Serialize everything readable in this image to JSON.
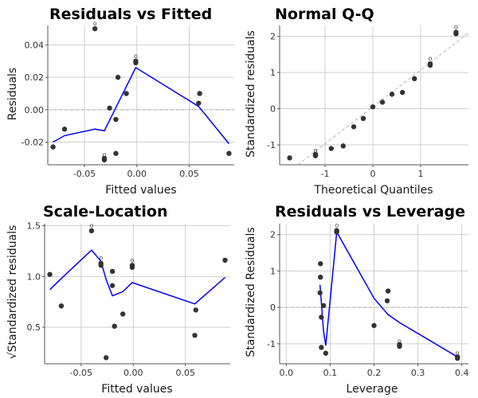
{
  "chart_data": [
    {
      "type": "scatter",
      "title": "Residuals vs Fitted",
      "xlabel": "Fitted values",
      "ylabel": "Residuals",
      "xlim": [
        -0.085,
        0.093
      ],
      "ylim": [
        -0.034,
        0.052
      ],
      "xticks": [
        -0.05,
        0.0,
        0.05
      ],
      "xtick_labels": [
        "-0.05",
        "0.00",
        "0.05"
      ],
      "yticks": [
        -0.02,
        0.0,
        0.02,
        0.04
      ],
      "ytick_labels": [
        "-0.02",
        "0.00",
        "0.02",
        "0.04"
      ],
      "grid": true,
      "ref_line": {
        "y": 0
      },
      "points": [
        {
          "x": -0.08,
          "y": -0.023
        },
        {
          "x": -0.069,
          "y": -0.012
        },
        {
          "x": -0.04,
          "y": 0.05,
          "label": "o"
        },
        {
          "x": -0.031,
          "y": -0.031,
          "label": "o"
        },
        {
          "x": -0.031,
          "y": -0.03
        },
        {
          "x": -0.026,
          "y": 0.001
        },
        {
          "x": -0.02,
          "y": -0.006
        },
        {
          "x": -0.02,
          "y": -0.027
        },
        {
          "x": -0.018,
          "y": 0.02
        },
        {
          "x": -0.01,
          "y": 0.01
        },
        {
          "x": -0.001,
          "y": 0.029
        },
        {
          "x": -0.001,
          "y": 0.03,
          "label": "o"
        },
        {
          "x": 0.059,
          "y": 0.004
        },
        {
          "x": 0.06,
          "y": 0.01
        },
        {
          "x": 0.088,
          "y": -0.027
        }
      ],
      "smoother": [
        [
          -0.08,
          -0.02
        ],
        [
          -0.069,
          -0.016
        ],
        [
          -0.04,
          -0.012
        ],
        [
          -0.031,
          -0.013
        ],
        [
          -0.001,
          0.026
        ],
        [
          0.059,
          0.002
        ],
        [
          0.088,
          -0.021
        ]
      ]
    },
    {
      "type": "scatter",
      "title": "Normal Q-Q",
      "xlabel": "Theoretical Quantiles",
      "ylabel": "Standardized residuals",
      "xlim": [
        -1.95,
        2.0
      ],
      "ylim": [
        -1.55,
        2.3
      ],
      "xticks": [
        -1,
        0,
        1
      ],
      "xtick_labels": [
        "-1",
        "0",
        "1"
      ],
      "yticks": [
        -1,
        0,
        1,
        2
      ],
      "ytick_labels": [
        "-1",
        "0",
        "1",
        "2"
      ],
      "grid": true,
      "ref_line": {
        "slope": 1.02,
        "intercept": 0.05
      },
      "points": [
        {
          "x": -1.74,
          "y": -1.36
        },
        {
          "x": -1.2,
          "y": -1.26
        },
        {
          "x": -1.2,
          "y": -1.3,
          "label": "o"
        },
        {
          "x": -0.87,
          "y": -1.1
        },
        {
          "x": -0.62,
          "y": -1.03
        },
        {
          "x": -0.4,
          "y": -0.5
        },
        {
          "x": -0.2,
          "y": -0.27
        },
        {
          "x": 0.0,
          "y": 0.05
        },
        {
          "x": 0.2,
          "y": 0.18
        },
        {
          "x": 0.4,
          "y": 0.4
        },
        {
          "x": 0.62,
          "y": 0.45
        },
        {
          "x": 0.87,
          "y": 0.83
        },
        {
          "x": 1.2,
          "y": 1.2
        },
        {
          "x": 1.2,
          "y": 1.24,
          "label": "o"
        },
        {
          "x": 1.74,
          "y": 2.07
        },
        {
          "x": 1.74,
          "y": 2.11,
          "label": "o"
        }
      ]
    },
    {
      "type": "scatter",
      "title": "Scale-Location",
      "xlabel": "Fitted values",
      "ylabel": "√Standardized residuals",
      "xlim": [
        -0.085,
        0.093
      ],
      "ylim": [
        0.14,
        1.52
      ],
      "xticks": [
        -0.05,
        0.0,
        0.05
      ],
      "xtick_labels": [
        "-0.05",
        "0.00",
        "0.05"
      ],
      "yticks": [
        0.5,
        1.0,
        1.5
      ],
      "ytick_labels": [
        "0.5",
        "1.0",
        "1.5"
      ],
      "grid": true,
      "points": [
        {
          "x": -0.08,
          "y": 1.02
        },
        {
          "x": -0.069,
          "y": 0.71
        },
        {
          "x": -0.04,
          "y": 1.45,
          "label": "o"
        },
        {
          "x": -0.031,
          "y": 1.13,
          "label": "o"
        },
        {
          "x": -0.031,
          "y": 1.11
        },
        {
          "x": -0.026,
          "y": 0.2
        },
        {
          "x": -0.02,
          "y": 0.91
        },
        {
          "x": -0.02,
          "y": 1.05
        },
        {
          "x": -0.018,
          "y": 0.51
        },
        {
          "x": -0.01,
          "y": 0.63
        },
        {
          "x": -0.001,
          "y": 1.09
        },
        {
          "x": -0.001,
          "y": 1.11,
          "label": "o"
        },
        {
          "x": 0.059,
          "y": 0.42
        },
        {
          "x": 0.06,
          "y": 0.67
        },
        {
          "x": 0.088,
          "y": 1.16
        }
      ],
      "smoother": [
        [
          -0.08,
          0.87
        ],
        [
          -0.069,
          0.98
        ],
        [
          -0.04,
          1.26
        ],
        [
          -0.031,
          1.15
        ],
        [
          -0.026,
          0.97
        ],
        [
          -0.02,
          0.81
        ],
        [
          -0.01,
          0.85
        ],
        [
          -0.001,
          0.94
        ],
        [
          0.059,
          0.73
        ],
        [
          0.088,
          0.99
        ]
      ]
    },
    {
      "type": "scatter",
      "title": "Residuals vs Leverage",
      "xlabel": "Leverage",
      "ylabel": "Standardized Residuals",
      "xlim": [
        -0.015,
        0.415
      ],
      "ylim": [
        -1.55,
        2.3
      ],
      "xticks": [
        0.0,
        0.1,
        0.2,
        0.3,
        0.4
      ],
      "xtick_labels": [
        "0.0",
        "0.1",
        "0.2",
        "0.3",
        "0.4"
      ],
      "yticks": [
        -1,
        0,
        1,
        2
      ],
      "ytick_labels": [
        "-1",
        "0",
        "1",
        "2"
      ],
      "grid": true,
      "ref_line": {
        "y": 0
      },
      "points": [
        {
          "x": 0.077,
          "y": 0.4
        },
        {
          "x": 0.078,
          "y": 1.2
        },
        {
          "x": 0.078,
          "y": 0.83
        },
        {
          "x": 0.08,
          "y": -0.27
        },
        {
          "x": 0.08,
          "y": -1.1
        },
        {
          "x": 0.085,
          "y": 0.05
        },
        {
          "x": 0.09,
          "y": -1.26
        },
        {
          "x": 0.115,
          "y": 2.07
        },
        {
          "x": 0.115,
          "y": 2.11,
          "label": "o"
        },
        {
          "x": 0.2,
          "y": -0.5
        },
        {
          "x": 0.23,
          "y": 0.18
        },
        {
          "x": 0.232,
          "y": 0.45
        },
        {
          "x": 0.258,
          "y": -1.02
        },
        {
          "x": 0.258,
          "y": -1.07,
          "label": "o"
        },
        {
          "x": 0.39,
          "y": -1.36
        },
        {
          "x": 0.39,
          "y": -1.4,
          "label": "o"
        }
      ],
      "smoother": [
        [
          0.077,
          0.62
        ],
        [
          0.085,
          -0.65
        ],
        [
          0.09,
          -1.05
        ],
        [
          0.115,
          2.07
        ],
        [
          0.2,
          0.25
        ],
        [
          0.232,
          -0.2
        ],
        [
          0.258,
          -0.42
        ],
        [
          0.39,
          -1.36
        ]
      ]
    }
  ],
  "colors": {
    "point": "#333333",
    "smoother": "#0000ff",
    "grid": "#cfcfcf",
    "ref": "#b4b4b4",
    "axis": "#555555"
  }
}
